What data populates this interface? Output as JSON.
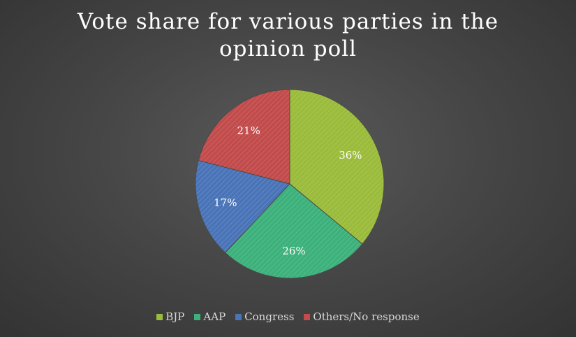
{
  "chart_data": {
    "type": "pie",
    "title": "Vote share for various parties in the opinion poll",
    "legend_position": "bottom",
    "start_angle_deg": 0,
    "direction": "clockwise",
    "slices": [
      {
        "name": "BJP",
        "value": 36,
        "label": "36%",
        "color": "#9bbb3b"
      },
      {
        "name": "AAP",
        "value": 26,
        "label": "26%",
        "color": "#3cb17b"
      },
      {
        "name": "Congress",
        "value": 17,
        "label": "17%",
        "color": "#4a74b8"
      },
      {
        "name": "Others/No response",
        "value": 21,
        "label": "21%",
        "color": "#c24b4b"
      }
    ]
  }
}
